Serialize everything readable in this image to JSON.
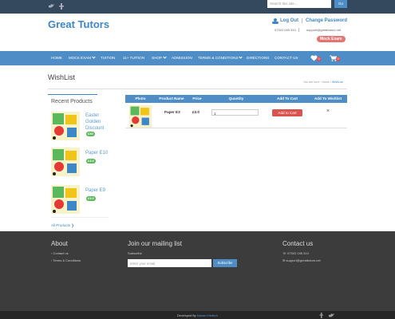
{
  "topbar": {
    "search_placeholder": "Search this site...",
    "search_button": "Go"
  },
  "header": {
    "logo": "Great Tutors",
    "logout": "Log Out",
    "change_password": "Change Password",
    "phone": "07922 045 314",
    "email": "support@greattutors.net",
    "mock_exam": "Mock Exam"
  },
  "nav": {
    "items": [
      "HOME",
      "MOCK EXAM",
      "TUITION",
      "11+ TUITION",
      "SHOP",
      "ADMISSION",
      "TERMS & CONDITIONS",
      "DIRECTIONS",
      "CONTACT US"
    ],
    "wishlist_count": "0",
    "cart_count": "0"
  },
  "page": {
    "title": "WishList",
    "breadcrumb": [
      "You are here :",
      "Home",
      "\\",
      "WishList"
    ]
  },
  "sidebar": {
    "title": "Recent Products",
    "products": [
      {
        "name": "Easter Golden Discount",
        "price": "£30"
      },
      {
        "name": "Paper E10",
        "price": "£3.0"
      },
      {
        "name": "Paper E9",
        "price": "£3.0"
      }
    ],
    "all_products": "All Products"
  },
  "table": {
    "headers": [
      "Photo",
      "Product Name",
      "Price",
      "Quantity",
      "Add To Cart",
      "Add To Wishlist"
    ],
    "rows": [
      {
        "name": "Paper E3",
        "price": "£3.0",
        "quantity": "1",
        "add_to_cart": "Add to Cart",
        "remove": "×"
      }
    ]
  },
  "footer": {
    "about": {
      "title": "About",
      "links": [
        "Contact us",
        "Terms & Conditions"
      ]
    },
    "mailing": {
      "title": "Join our mailing list",
      "label": "Subscribe",
      "placeholder": "Enter your email",
      "button": "Subscribe"
    },
    "contact": {
      "title": "Contact us",
      "phone": "07922 045 314",
      "email": "support@greattutors.net"
    },
    "credit": "Developed By",
    "credit_link": "Manan Infotech"
  }
}
